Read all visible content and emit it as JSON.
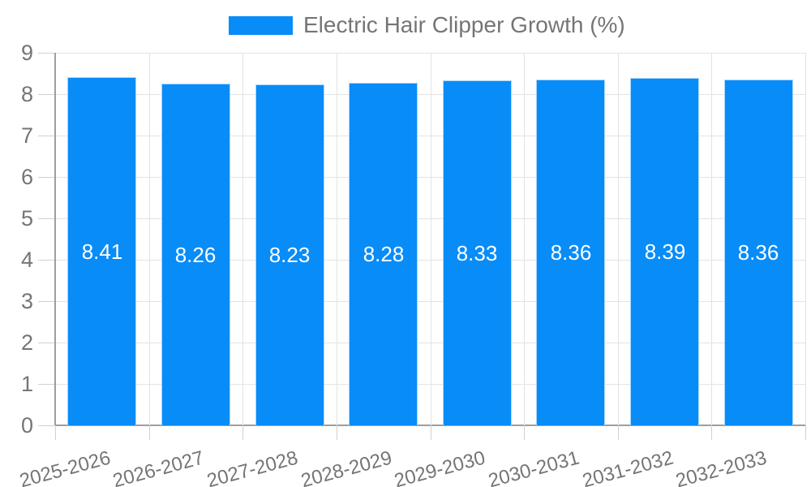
{
  "chart_data": {
    "type": "bar",
    "title": "Electric Hair Clipper Growth (%)",
    "legend": [
      "Electric Hair Clipper Growth (%)"
    ],
    "legend_position": "top",
    "categories": [
      "2025-2026",
      "2026-2027",
      "2027-2028",
      "2028-2029",
      "2029-2030",
      "2030-2031",
      "2031-2032",
      "2032-2033"
    ],
    "series": [
      {
        "name": "Electric Hair Clipper Growth (%)",
        "values": [
          8.41,
          8.26,
          8.23,
          8.28,
          8.33,
          8.36,
          8.39,
          8.36
        ]
      }
    ],
    "value_labels": [
      "8.41",
      "8.26",
      "8.23",
      "8.28",
      "8.33",
      "8.36",
      "8.39",
      "8.36"
    ],
    "xlabel": "",
    "ylabel": "",
    "ylim": [
      0,
      9
    ],
    "y_ticks": [
      0,
      1,
      2,
      3,
      4,
      5,
      6,
      7,
      8,
      9
    ],
    "grid": true,
    "colors": {
      "bar": "#088CF8",
      "bar_border": "#a9d7fb",
      "axis_label": "#757575",
      "value_label": "#ffffff",
      "grid_line": "#e3e3e3",
      "tick_line": "#d0d0d0",
      "axis_line": "#9e9e9e",
      "legend_text": "#757575"
    }
  }
}
